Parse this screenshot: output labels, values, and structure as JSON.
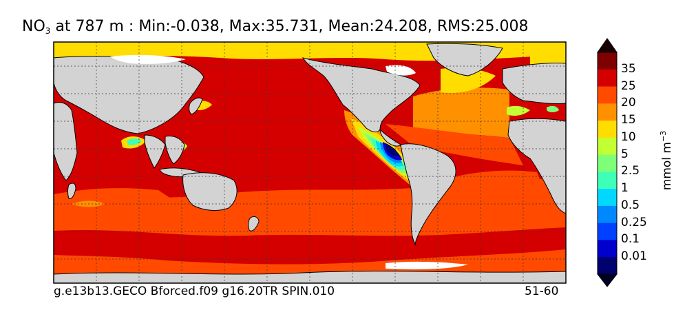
{
  "title": {
    "variable": "NO",
    "subscript": "3",
    "text": " at 787 m : Min:-0.038, Max:35.731, Mean:24.208, RMS:25.008"
  },
  "colorbar": {
    "units_base": "mmol m",
    "units_exponent": "−3",
    "labels": [
      "35",
      "25",
      "20",
      "15",
      "10",
      "5",
      "2.5",
      "1",
      "0.5",
      "0.25",
      "0.1",
      "0.01"
    ],
    "colors": [
      "#7f0000",
      "#d40000",
      "#ff4a00",
      "#ff9000",
      "#ffdd00",
      "#c2ff33",
      "#7dff78",
      "#3dffb8",
      "#00d8ff",
      "#0088ff",
      "#0040ff",
      "#0000cc",
      "#00006e"
    ],
    "over_color": "#1a0000",
    "under_color": "#000022"
  },
  "map": {
    "land_color": "#d3d3d3",
    "missing_color": "#ffffff",
    "coast_color": "#000000",
    "grid_color": "#333333"
  },
  "footer": {
    "case_name": "g.e13b13.GECO Bforced.f09 g16.20TR SPIN.010",
    "years": "51-60"
  }
}
